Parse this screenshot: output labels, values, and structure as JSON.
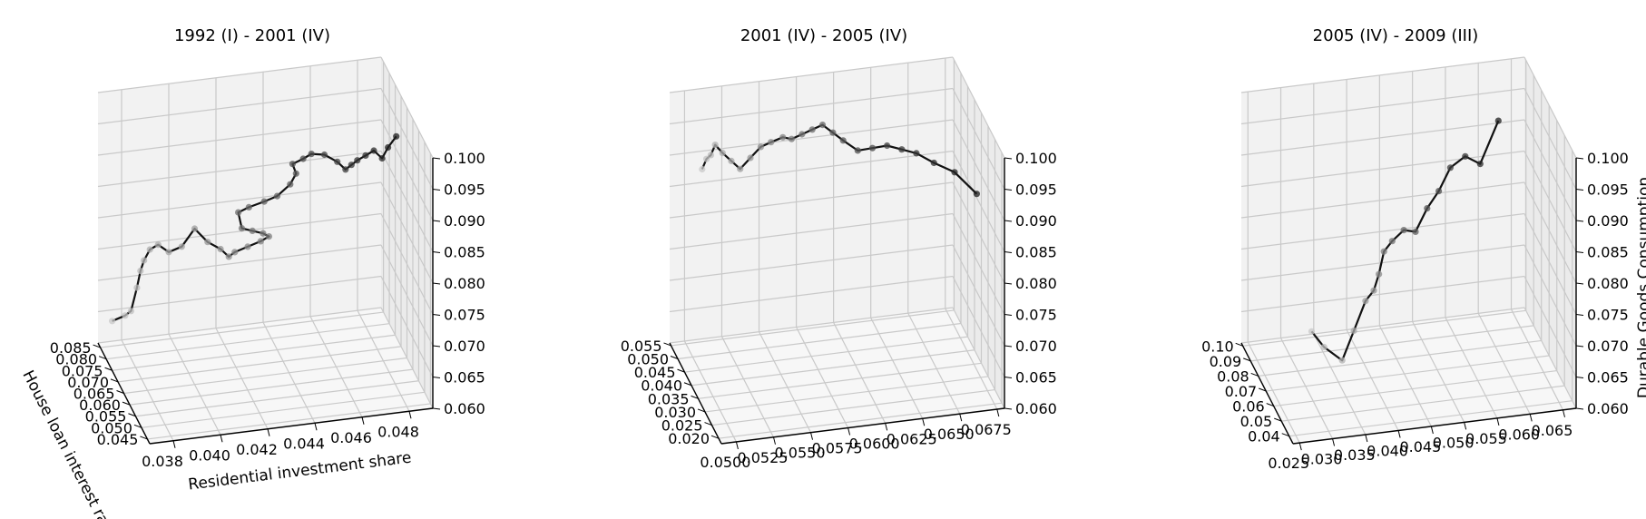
{
  "figure": {
    "background": "#ffffff",
    "line_color": "#111111",
    "marker_color": "#7f7f7f",
    "grid_color": "#c9c9c9",
    "pane_color": "#f2f2f2"
  },
  "chart_data": [
    {
      "type": "line3d",
      "title": "1992 (I) - 2001 (IV)",
      "xlabel": "Residential investment share",
      "ylabel": "House loan interest rate",
      "zlabel": "",
      "x_ticks": [
        "0.038",
        "0.040",
        "0.042",
        "0.044",
        "0.046",
        "0.048"
      ],
      "y_ticks": [
        "0.045",
        "0.050",
        "0.055",
        "0.060",
        "0.065",
        "0.070",
        "0.075",
        "0.080",
        "0.085"
      ],
      "z_ticks": [
        "0.060",
        "0.065",
        "0.070",
        "0.075",
        "0.080",
        "0.085",
        "0.090",
        "0.095",
        "0.100"
      ],
      "xlim": [
        0.037,
        0.049
      ],
      "ylim": [
        0.043,
        0.087
      ],
      "zlim": [
        0.06,
        0.1
      ],
      "grid": true,
      "series": [
        {
          "x": [
            0.0375,
            0.038,
            0.0382,
            0.0384,
            0.0385,
            0.0386,
            0.0388,
            0.0391,
            0.0395,
            0.04,
            0.0405,
            0.041,
            0.0415,
            0.0418,
            0.042,
            0.0425,
            0.043,
            0.0433,
            0.043,
            0.0425,
            0.042,
            0.0418,
            0.0422,
            0.0428,
            0.0433,
            0.0438,
            0.044,
            0.0438,
            0.0442,
            0.0445,
            0.045,
            0.0455,
            0.0458,
            0.046,
            0.0462,
            0.0465,
            0.0468,
            0.0471,
            0.0473,
            0.0476
          ],
          "y": [
            0.085,
            0.084,
            0.083,
            0.082,
            0.081,
            0.08,
            0.079,
            0.078,
            0.077,
            0.076,
            0.075,
            0.074,
            0.073,
            0.072,
            0.071,
            0.07,
            0.069,
            0.068,
            0.067,
            0.066,
            0.065,
            0.064,
            0.063,
            0.062,
            0.061,
            0.06,
            0.059,
            0.058,
            0.057,
            0.056,
            0.055,
            0.054,
            0.053,
            0.052,
            0.051,
            0.05,
            0.049,
            0.048,
            0.047,
            0.046
          ],
          "z": [
            0.064,
            0.065,
            0.066,
            0.07,
            0.073,
            0.075,
            0.077,
            0.078,
            0.077,
            0.078,
            0.081,
            0.079,
            0.078,
            0.077,
            0.078,
            0.079,
            0.08,
            0.081,
            0.082,
            0.083,
            0.084,
            0.087,
            0.088,
            0.089,
            0.09,
            0.092,
            0.094,
            0.096,
            0.097,
            0.098,
            0.098,
            0.097,
            0.096,
            0.097,
            0.098,
            0.099,
            0.1,
            0.099,
            0.101,
            0.103
          ]
        }
      ]
    },
    {
      "type": "line3d",
      "title": "2001 (IV) - 2005 (IV)",
      "xlabel": "",
      "ylabel": "",
      "zlabel": "",
      "x_ticks": [
        "0.0500",
        "0.0525",
        "0.0550",
        "0.0575",
        "0.0600",
        "0.0625",
        "0.0650",
        "0.0675"
      ],
      "y_ticks": [
        "0.020",
        "0.025",
        "0.030",
        "0.035",
        "0.040",
        "0.045",
        "0.050",
        "0.055"
      ],
      "z_ticks": [
        "0.060",
        "0.065",
        "0.070",
        "0.075",
        "0.080",
        "0.085",
        "0.090",
        "0.095",
        "0.100"
      ],
      "xlim": [
        0.049,
        0.068
      ],
      "ylim": [
        0.018,
        0.056
      ],
      "zlim": [
        0.06,
        0.1
      ],
      "grid": true,
      "series": [
        {
          "x": [
            0.051,
            0.0512,
            0.0514,
            0.0516,
            0.052,
            0.0525,
            0.053,
            0.0536,
            0.0542,
            0.0548,
            0.0555,
            0.056,
            0.0566,
            0.0572,
            0.0578,
            0.0584,
            0.059,
            0.0598,
            0.0606,
            0.0614,
            0.0622,
            0.063,
            0.064,
            0.0652,
            0.0665
          ],
          "y": [
            0.054,
            0.053,
            0.052,
            0.051,
            0.05,
            0.049,
            0.048,
            0.047,
            0.046,
            0.045,
            0.044,
            0.043,
            0.042,
            0.041,
            0.04,
            0.039,
            0.038,
            0.036,
            0.034,
            0.032,
            0.03,
            0.028,
            0.026,
            0.024,
            0.022
          ],
          "z": [
            0.088,
            0.09,
            0.091,
            0.093,
            0.092,
            0.091,
            0.09,
            0.092,
            0.094,
            0.095,
            0.096,
            0.096,
            0.097,
            0.098,
            0.099,
            0.098,
            0.097,
            0.096,
            0.097,
            0.098,
            0.098,
            0.098,
            0.097,
            0.096,
            0.093
          ]
        }
      ]
    },
    {
      "type": "line3d",
      "title": "2005 (IV) - 2009 (III)",
      "xlabel": "",
      "ylabel": "",
      "zlabel": "Durable Goods Consumption",
      "x_ticks": [
        "0.025",
        "0.030",
        "0.035",
        "0.040",
        "0.045",
        "0.050",
        "0.055",
        "0.060",
        "0.065"
      ],
      "y_ticks": [
        "0.04",
        "0.05",
        "0.06",
        "0.07",
        "0.08",
        "0.09",
        "0.10"
      ],
      "z_ticks": [
        "0.060",
        "0.065",
        "0.070",
        "0.075",
        "0.080",
        "0.085",
        "0.090",
        "0.095",
        "0.100"
      ],
      "xlim": [
        0.024,
        0.067
      ],
      "ylim": [
        0.035,
        0.102
      ],
      "zlim": [
        0.06,
        0.1
      ],
      "grid": true,
      "series": [
        {
          "x": [
            0.028,
            0.03,
            0.033,
            0.035,
            0.037,
            0.0385,
            0.0395,
            0.0405,
            0.042,
            0.044,
            0.046,
            0.048,
            0.05,
            0.052,
            0.0545,
            0.057,
            0.06
          ],
          "y": [
            0.045,
            0.046,
            0.048,
            0.05,
            0.052,
            0.054,
            0.056,
            0.058,
            0.06,
            0.062,
            0.064,
            0.066,
            0.068,
            0.07,
            0.072,
            0.074,
            0.076
          ],
          "z": [
            0.075,
            0.072,
            0.069,
            0.073,
            0.077,
            0.078,
            0.08,
            0.083,
            0.084,
            0.085,
            0.084,
            0.087,
            0.089,
            0.092,
            0.093,
            0.091,
            0.097
          ]
        }
      ]
    }
  ]
}
